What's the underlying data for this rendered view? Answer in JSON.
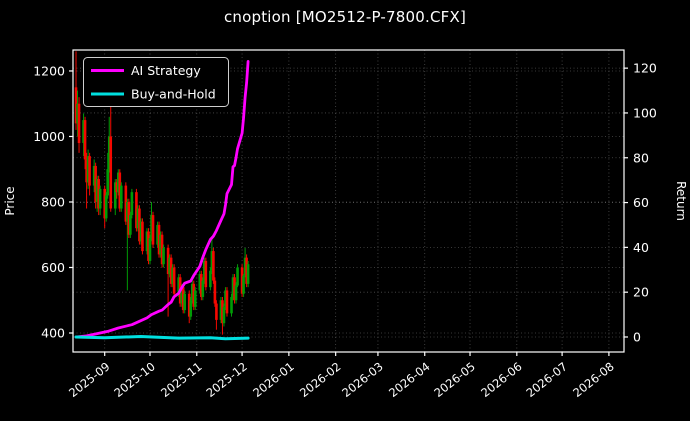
{
  "window": {
    "title": "cnoption [MO2512-P-7800.CFX]"
  },
  "colors": {
    "background": "#000000",
    "foreground": "#ffffff",
    "grid": "#8a8a8a",
    "candle_up": "#009c06",
    "candle_down": "#f50800",
    "ai_strategy": "#ff00ff",
    "buy_and_hold": "#00e0e0"
  },
  "chart_data": {
    "type": "candlestick+line",
    "title": "cnoption [MO2512-P-7800.CFX]",
    "grid": "dotted, both axes",
    "legend_position": "upper left",
    "legend": [
      {
        "name": "AI Strategy",
        "color": "#ff00ff"
      },
      {
        "name": "Buy-and-Hold",
        "color": "#00e0e0"
      }
    ],
    "x_axis": {
      "min": "2025-08-11",
      "max": "2026-08-11",
      "ticks": [
        "2025-09",
        "2025-10",
        "2025-11",
        "2025-12",
        "2026-01",
        "2026-02",
        "2026-03",
        "2026-04",
        "2026-05",
        "2026-06",
        "2026-07",
        "2026-08"
      ]
    },
    "price_axis": {
      "label": "Price",
      "ticks": [
        400,
        600,
        800,
        1000,
        1200
      ],
      "min": 342,
      "max": 1264
    },
    "return_axis": {
      "label": "Return",
      "ticks": [
        0,
        20,
        40,
        60,
        80,
        100,
        120
      ],
      "min": -6.7,
      "max": 128.1
    },
    "candles": [
      [
        "2025-08-13",
        1150,
        1260,
        1020,
        1040
      ],
      [
        "2025-08-14",
        1040,
        1140,
        1000,
        1100
      ],
      [
        "2025-08-15",
        1100,
        1120,
        950,
        980
      ],
      [
        "2025-08-18",
        980,
        1070,
        940,
        1050
      ],
      [
        "2025-08-19",
        1050,
        1060,
        900,
        930
      ],
      [
        "2025-08-20",
        930,
        950,
        780,
        860
      ],
      [
        "2025-08-21",
        860,
        960,
        840,
        940
      ],
      [
        "2025-08-22",
        940,
        950,
        820,
        850
      ],
      [
        "2025-08-25",
        850,
        930,
        830,
        910
      ],
      [
        "2025-08-26",
        910,
        920,
        780,
        800
      ],
      [
        "2025-08-27",
        800,
        880,
        770,
        870
      ],
      [
        "2025-08-28",
        870,
        880,
        760,
        780
      ],
      [
        "2025-08-29",
        780,
        850,
        760,
        840
      ],
      [
        "2025-09-01",
        840,
        850,
        720,
        750
      ],
      [
        "2025-09-02",
        750,
        830,
        740,
        820
      ],
      [
        "2025-09-03",
        820,
        950,
        810,
        900
      ],
      [
        "2025-09-04",
        900,
        1060,
        890,
        1000
      ],
      [
        "2025-09-05",
        1000,
        1170,
        770,
        780
      ],
      [
        "2025-09-08",
        780,
        870,
        760,
        860
      ],
      [
        "2025-09-09",
        860,
        870,
        810,
        830
      ],
      [
        "2025-09-10",
        830,
        900,
        820,
        890
      ],
      [
        "2025-09-11",
        890,
        900,
        770,
        780
      ],
      [
        "2025-09-12",
        780,
        860,
        770,
        850
      ],
      [
        "2025-09-15",
        850,
        860,
        730,
        740
      ],
      [
        "2025-09-16",
        740,
        810,
        530,
        800
      ],
      [
        "2025-09-17",
        800,
        810,
        690,
        700
      ],
      [
        "2025-09-18",
        700,
        770,
        690,
        760
      ],
      [
        "2025-09-19",
        760,
        840,
        750,
        830
      ],
      [
        "2025-09-22",
        830,
        840,
        710,
        720
      ],
      [
        "2025-09-23",
        720,
        790,
        710,
        780
      ],
      [
        "2025-09-24",
        780,
        790,
        670,
        680
      ],
      [
        "2025-09-25",
        680,
        750,
        670,
        740
      ],
      [
        "2025-09-26",
        740,
        750,
        640,
        650
      ],
      [
        "2025-09-29",
        650,
        720,
        640,
        710
      ],
      [
        "2025-09-30",
        710,
        720,
        610,
        620
      ],
      [
        "2025-10-01",
        620,
        700,
        610,
        690
      ],
      [
        "2025-10-02",
        690,
        800,
        680,
        760
      ],
      [
        "2025-10-03",
        760,
        770,
        660,
        670
      ],
      [
        "2025-10-06",
        670,
        740,
        660,
        730
      ],
      [
        "2025-10-07",
        730,
        740,
        630,
        640
      ],
      [
        "2025-10-08",
        640,
        710,
        630,
        700
      ],
      [
        "2025-10-09",
        700,
        710,
        600,
        610
      ],
      [
        "2025-10-10",
        610,
        670,
        600,
        660
      ],
      [
        "2025-10-13",
        660,
        670,
        450,
        580
      ],
      [
        "2025-10-14",
        580,
        640,
        570,
        630
      ],
      [
        "2025-10-15",
        630,
        640,
        540,
        550
      ],
      [
        "2025-10-16",
        550,
        610,
        540,
        600
      ],
      [
        "2025-10-17",
        600,
        610,
        510,
        520
      ],
      [
        "2025-10-20",
        520,
        580,
        510,
        570
      ],
      [
        "2025-10-21",
        570,
        580,
        480,
        490
      ],
      [
        "2025-10-22",
        490,
        550,
        480,
        540
      ],
      [
        "2025-10-23",
        540,
        550,
        460,
        470
      ],
      [
        "2025-10-24",
        470,
        530,
        460,
        520
      ],
      [
        "2025-10-27",
        520,
        530,
        430,
        450
      ],
      [
        "2025-10-28",
        450,
        510,
        440,
        500
      ],
      [
        "2025-10-29",
        500,
        560,
        490,
        550
      ],
      [
        "2025-10-30",
        550,
        560,
        470,
        480
      ],
      [
        "2025-10-31",
        480,
        540,
        470,
        530
      ],
      [
        "2025-11-03",
        530,
        590,
        520,
        580
      ],
      [
        "2025-11-04",
        580,
        590,
        500,
        510
      ],
      [
        "2025-11-05",
        510,
        570,
        500,
        560
      ],
      [
        "2025-11-06",
        560,
        630,
        550,
        620
      ],
      [
        "2025-11-07",
        620,
        630,
        530,
        540
      ],
      [
        "2025-11-10",
        540,
        600,
        530,
        590
      ],
      [
        "2025-11-11",
        590,
        690,
        580,
        650
      ],
      [
        "2025-11-12",
        650,
        660,
        550,
        560
      ],
      [
        "2025-11-13",
        560,
        570,
        480,
        490
      ],
      [
        "2025-11-14",
        490,
        500,
        410,
        440
      ],
      [
        "2025-11-17",
        440,
        510,
        430,
        500
      ],
      [
        "2025-11-18",
        500,
        510,
        395,
        430
      ],
      [
        "2025-11-19",
        430,
        490,
        420,
        480
      ],
      [
        "2025-11-20",
        480,
        540,
        470,
        530
      ],
      [
        "2025-11-21",
        530,
        540,
        450,
        460
      ],
      [
        "2025-11-24",
        460,
        520,
        450,
        510
      ],
      [
        "2025-11-25",
        510,
        580,
        500,
        570
      ],
      [
        "2025-11-26",
        570,
        580,
        490,
        500
      ],
      [
        "2025-11-27",
        500,
        555,
        490,
        545
      ],
      [
        "2025-11-28",
        545,
        610,
        540,
        600
      ],
      [
        "2025-12-01",
        600,
        610,
        510,
        520
      ],
      [
        "2025-12-02",
        520,
        580,
        510,
        575
      ],
      [
        "2025-12-03",
        575,
        660,
        570,
        630
      ],
      [
        "2025-12-04",
        630,
        640,
        540,
        550
      ],
      [
        "2025-12-05",
        550,
        620,
        540,
        610
      ]
    ],
    "series": [
      {
        "name": "AI Strategy",
        "axis": "return",
        "color": "#ff00ff",
        "width": 2.8,
        "points": [
          [
            "2025-08-13",
            0
          ],
          [
            "2025-08-20",
            0.5
          ],
          [
            "2025-08-27",
            1.5
          ],
          [
            "2025-09-03",
            2.5
          ],
          [
            "2025-09-10",
            4
          ],
          [
            "2025-09-16",
            5
          ],
          [
            "2025-09-19",
            5.5
          ],
          [
            "2025-09-24",
            7
          ],
          [
            "2025-09-29",
            8.5
          ],
          [
            "2025-10-02",
            10
          ],
          [
            "2025-10-07",
            11.5
          ],
          [
            "2025-10-09",
            12
          ],
          [
            "2025-10-13",
            14.5
          ],
          [
            "2025-10-15",
            15.5
          ],
          [
            "2025-10-17",
            18
          ],
          [
            "2025-10-20",
            19.5
          ],
          [
            "2025-10-22",
            22
          ],
          [
            "2025-10-24",
            24
          ],
          [
            "2025-10-28",
            25
          ],
          [
            "2025-10-30",
            27.5
          ],
          [
            "2025-11-03",
            31.5
          ],
          [
            "2025-11-05",
            35.5
          ],
          [
            "2025-11-07",
            39
          ],
          [
            "2025-11-10",
            43.5
          ],
          [
            "2025-11-12",
            45
          ],
          [
            "2025-11-14",
            47.5
          ],
          [
            "2025-11-17",
            52
          ],
          [
            "2025-11-19",
            55
          ],
          [
            "2025-11-20",
            59
          ],
          [
            "2025-11-21",
            64
          ],
          [
            "2025-11-24",
            68
          ],
          [
            "2025-11-25",
            76
          ],
          [
            "2025-11-26",
            76.5
          ],
          [
            "2025-11-27",
            80
          ],
          [
            "2025-11-28",
            84
          ],
          [
            "2025-12-01",
            91
          ],
          [
            "2025-12-02",
            98
          ],
          [
            "2025-12-03",
            107
          ],
          [
            "2025-12-04",
            113.5
          ],
          [
            "2025-12-05",
            123
          ]
        ]
      },
      {
        "name": "Buy-and-Hold",
        "axis": "return",
        "color": "#00e0e0",
        "width": 3,
        "points": [
          [
            "2025-08-13",
            0
          ],
          [
            "2025-09-01",
            -0.3
          ],
          [
            "2025-09-25",
            0.2
          ],
          [
            "2025-10-20",
            -0.5
          ],
          [
            "2025-11-10",
            -0.3
          ],
          [
            "2025-11-20",
            -0.8
          ],
          [
            "2025-12-05",
            -0.5
          ]
        ]
      }
    ]
  }
}
